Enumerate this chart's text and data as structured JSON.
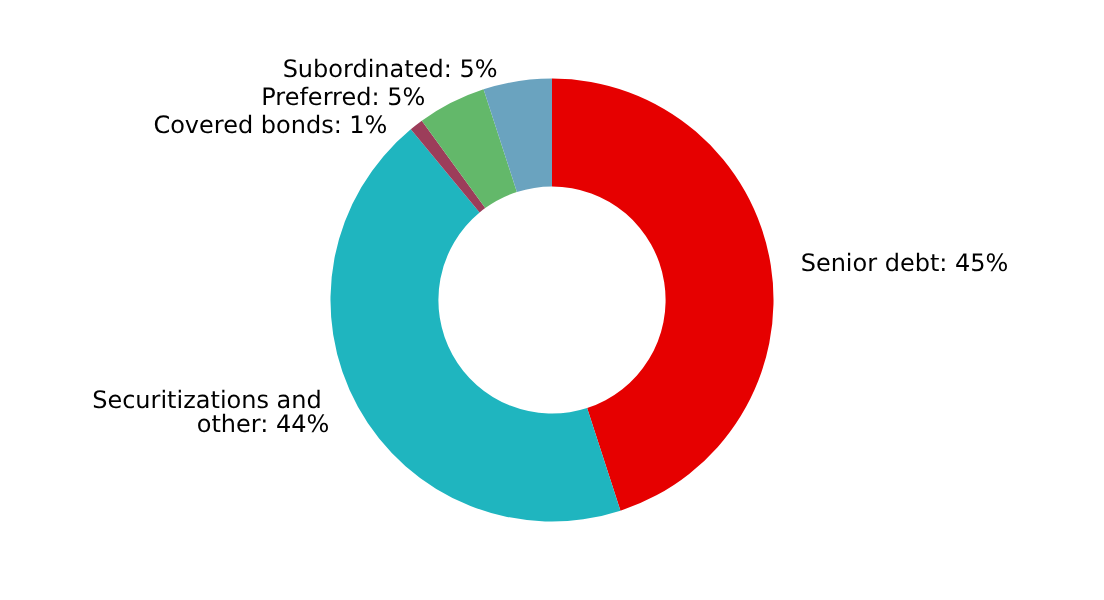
{
  "chart_data": {
    "type": "donut",
    "categories": [
      "Senior debt: 45%",
      "Securitizations and other: 44%",
      "Covered bonds: 1%",
      "Preferred: 5%",
      "Subordinated: 5%"
    ],
    "values": [
      45,
      44,
      1,
      5,
      5
    ],
    "colors": [
      "#e60000",
      "#1fb5bf",
      "#9c3d5a",
      "#63b86a",
      "#6aa3bf"
    ],
    "legend": false
  }
}
